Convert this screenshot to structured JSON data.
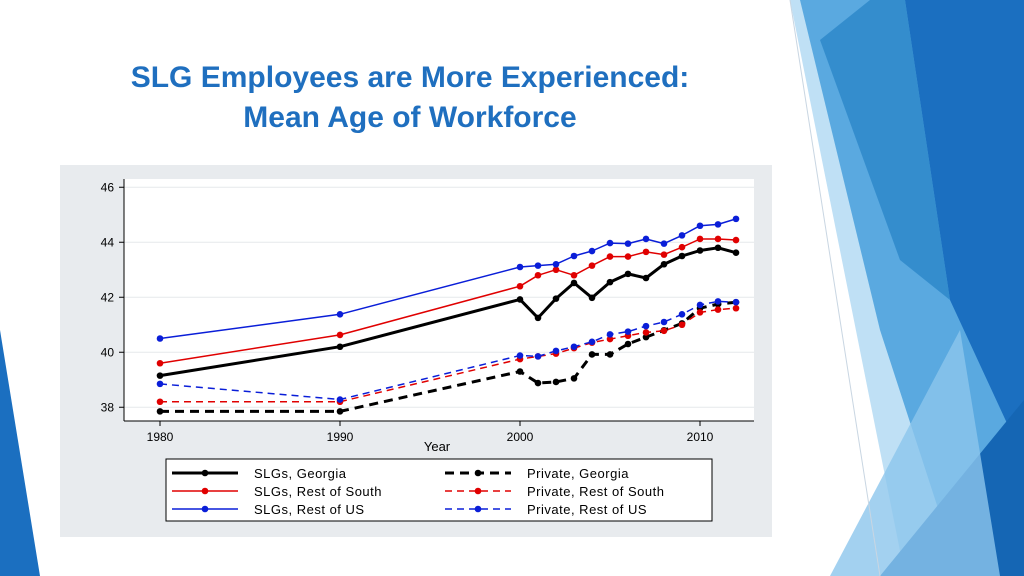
{
  "slide": {
    "title_line1": "SLG Employees are More Experienced:",
    "title_line2": "Mean Age of Workforce"
  },
  "colors": {
    "title": "#1f6fbf",
    "accent_dark": "#1b6fc0",
    "accent_light": "#4fa3e0"
  },
  "chart_data": {
    "type": "line",
    "title": "",
    "xlabel": "Year",
    "ylabel": "",
    "xlim": [
      1978,
      2013
    ],
    "ylim": [
      37.5,
      46.3
    ],
    "xticks": [
      1980,
      1990,
      2000,
      2010
    ],
    "yticks": [
      38,
      40,
      42,
      44,
      46
    ],
    "grid": true,
    "legend_position": "bottom",
    "series": [
      {
        "name": "SLGs, Georgia",
        "color": "#000000",
        "dash": false,
        "width": 3,
        "x": [
          1980,
          1990,
          2000,
          2001,
          2002,
          2003,
          2004,
          2005,
          2006,
          2007,
          2008,
          2009,
          2010,
          2011,
          2012
        ],
        "y": [
          39.15,
          40.2,
          41.92,
          41.25,
          41.95,
          42.52,
          41.98,
          42.55,
          42.85,
          42.7,
          43.2,
          43.5,
          43.7,
          43.8,
          43.62
        ]
      },
      {
        "name": "SLGs, Rest of South",
        "color": "#e00000",
        "dash": false,
        "width": 1.5,
        "x": [
          1980,
          1990,
          2000,
          2001,
          2002,
          2003,
          2004,
          2005,
          2006,
          2007,
          2008,
          2009,
          2010,
          2011,
          2012
        ],
        "y": [
          39.6,
          40.63,
          42.4,
          42.8,
          43.0,
          42.8,
          43.15,
          43.48,
          43.48,
          43.65,
          43.55,
          43.82,
          44.12,
          44.12,
          44.08
        ]
      },
      {
        "name": "SLGs, Rest of US",
        "color": "#0a1ed8",
        "dash": false,
        "width": 1.5,
        "x": [
          1980,
          1990,
          2000,
          2001,
          2002,
          2003,
          2004,
          2005,
          2006,
          2007,
          2008,
          2009,
          2010,
          2011,
          2012
        ],
        "y": [
          40.5,
          41.38,
          43.1,
          43.15,
          43.2,
          43.5,
          43.68,
          43.97,
          43.95,
          44.12,
          43.95,
          44.25,
          44.6,
          44.65,
          44.85
        ]
      },
      {
        "name": "Private, Georgia",
        "color": "#000000",
        "dash": true,
        "width": 3,
        "x": [
          1980,
          1990,
          2000,
          2001,
          2002,
          2003,
          2004,
          2005,
          2006,
          2007,
          2008,
          2009,
          2010,
          2011,
          2012
        ],
        "y": [
          37.85,
          37.85,
          39.3,
          38.88,
          38.92,
          39.05,
          39.92,
          39.92,
          40.3,
          40.55,
          40.8,
          41.05,
          41.6,
          41.75,
          41.82
        ]
      },
      {
        "name": "Private, Rest of South",
        "color": "#e00000",
        "dash": true,
        "width": 1.5,
        "x": [
          1980,
          1990,
          2000,
          2001,
          2002,
          2003,
          2004,
          2005,
          2006,
          2007,
          2008,
          2009,
          2010,
          2011,
          2012
        ],
        "y": [
          38.2,
          38.2,
          39.75,
          39.85,
          39.95,
          40.15,
          40.35,
          40.48,
          40.6,
          40.72,
          40.78,
          41.0,
          41.45,
          41.55,
          41.6
        ]
      },
      {
        "name": "Private, Rest of US",
        "color": "#0a1ed8",
        "dash": true,
        "width": 1.5,
        "x": [
          1980,
          1990,
          2000,
          2001,
          2002,
          2003,
          2004,
          2005,
          2006,
          2007,
          2008,
          2009,
          2010,
          2011,
          2012
        ],
        "y": [
          38.85,
          38.28,
          39.88,
          39.85,
          40.05,
          40.2,
          40.38,
          40.65,
          40.75,
          40.95,
          41.1,
          41.38,
          41.72,
          41.85,
          41.82
        ]
      }
    ]
  }
}
